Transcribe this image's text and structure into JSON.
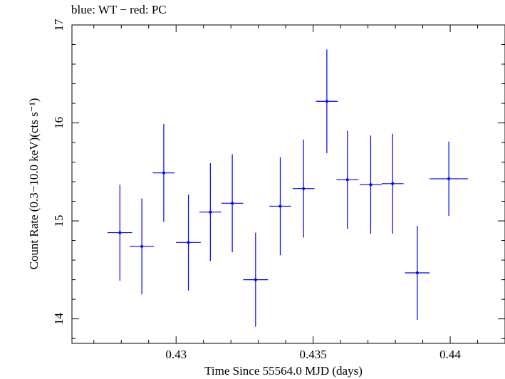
{
  "chart_data": {
    "type": "scatter",
    "title": "blue: WT − red: PC",
    "xlabel": "Time Since 55564.0 MJD (days)",
    "ylabel": "Count Rate (0.3−10.0 keV)(cts s⁻¹)",
    "xlim": [
      0.4262,
      0.442
    ],
    "ylim": [
      13.75,
      17.0
    ],
    "x_ticks": [
      0.43,
      0.435,
      0.44
    ],
    "x_tick_labels": [
      "0.43",
      "0.435",
      "0.44"
    ],
    "y_ticks": [
      14,
      15,
      16,
      17
    ],
    "y_tick_labels": [
      "14",
      "15",
      "16",
      "17"
    ],
    "grid": false,
    "series": [
      {
        "color": "#0000ff",
        "points": [
          {
            "x": 0.42795,
            "xerr": 0.00045,
            "y": 14.88,
            "yerr": 0.49
          },
          {
            "x": 0.42875,
            "xerr": 0.00045,
            "y": 14.74,
            "yerr": 0.49
          },
          {
            "x": 0.42955,
            "xerr": 0.0004,
            "y": 15.49,
            "yerr": 0.5
          },
          {
            "x": 0.43045,
            "xerr": 0.00045,
            "y": 14.78,
            "yerr": 0.49
          },
          {
            "x": 0.43125,
            "xerr": 0.0004,
            "y": 15.09,
            "yerr": 0.5
          },
          {
            "x": 0.43205,
            "xerr": 0.0004,
            "y": 15.18,
            "yerr": 0.5
          },
          {
            "x": 0.4329,
            "xerr": 0.00045,
            "y": 14.4,
            "yerr": 0.48
          },
          {
            "x": 0.4338,
            "xerr": 0.0004,
            "y": 15.15,
            "yerr": 0.5
          },
          {
            "x": 0.43465,
            "xerr": 0.0004,
            "y": 15.33,
            "yerr": 0.5
          },
          {
            "x": 0.4355,
            "xerr": 0.0004,
            "y": 16.22,
            "yerr": 0.53
          },
          {
            "x": 0.43625,
            "xerr": 0.0004,
            "y": 15.42,
            "yerr": 0.5
          },
          {
            "x": 0.4371,
            "xerr": 0.0004,
            "y": 15.37,
            "yerr": 0.5
          },
          {
            "x": 0.4379,
            "xerr": 0.0004,
            "y": 15.38,
            "yerr": 0.51
          },
          {
            "x": 0.4388,
            "xerr": 0.00045,
            "y": 14.47,
            "yerr": 0.48
          },
          {
            "x": 0.43995,
            "xerr": 0.0007,
            "y": 15.43,
            "yerr": 0.38
          }
        ]
      }
    ]
  }
}
